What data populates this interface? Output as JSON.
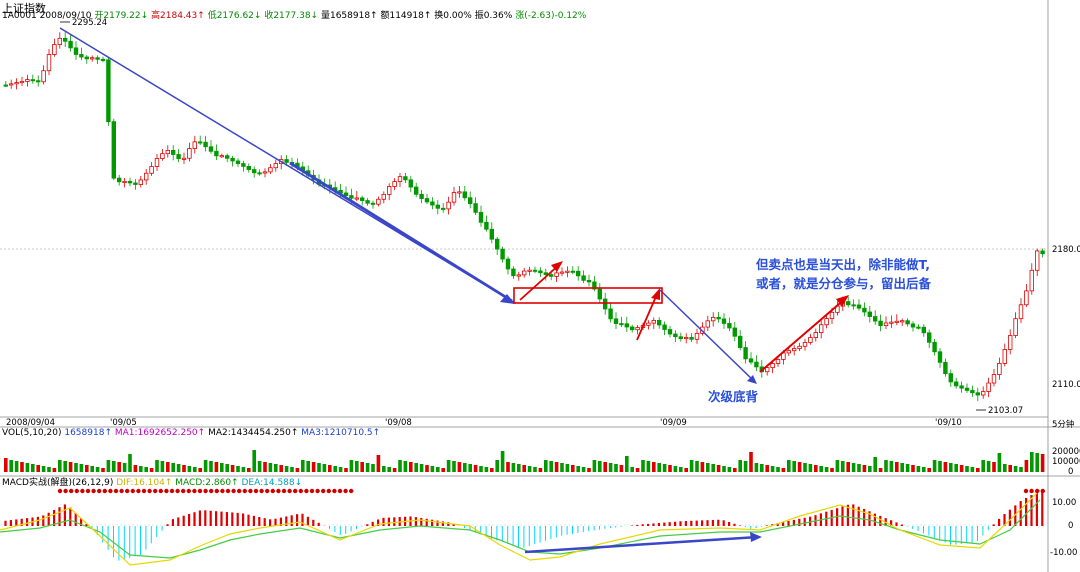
{
  "header": {
    "title": "上证指数",
    "code_date": "1A0001 2008/09/10",
    "open": "开2179.22↓",
    "high": "高2184.43↑",
    "low": "低2176.62↓",
    "close": "收2177.38↓",
    "volume": "量1658918↑",
    "amount": "额114918↑",
    "turnover": "换0.00%",
    "amplitude": "振0.36%",
    "change": "涨(-2.63)-0.12%"
  },
  "price_labels": {
    "high_mark": "2295.24",
    "low_mark": "2103.07",
    "right_axis_top": "2180.0",
    "right_axis_bottom": "2110.0"
  },
  "x_axis": {
    "labels": [
      "2008/09/04",
      "'09/05",
      "'09/08",
      "'09/09",
      "'09/10"
    ],
    "period": "5分钟"
  },
  "annotations": {
    "note_line1": "但卖点也是当天出，除非能做T,",
    "note_line2": "或者，就是分仓参与，留出后备",
    "divergence": "次级底背"
  },
  "volume_panel": {
    "label": "VOL(5,10,20)",
    "value": "1658918↑",
    "ma1": "MA1:1692652.250↑",
    "ma2": "MA2:1434454.250↑",
    "ma3": "MA3:1210710.5↑",
    "axis_top": "200000",
    "axis_mid": "100000",
    "axis_zero": "0"
  },
  "macd_panel": {
    "label": "MACD实战(解盘)(26,12,9)",
    "dif": "DIF:16.104↑",
    "macd": "MACD:2.860↑",
    "dea": "DEA:14.588↓",
    "axis_top": "10.00",
    "axis_zero": "0",
    "axis_bottom": "-10.00"
  },
  "colors": {
    "up": "#e00000",
    "down": "#009900",
    "trend": "#3a46c8",
    "box": "#e00000",
    "dif": "#e8d800",
    "dea": "#44cc44",
    "neg_hist": "#00d8ff"
  }
}
